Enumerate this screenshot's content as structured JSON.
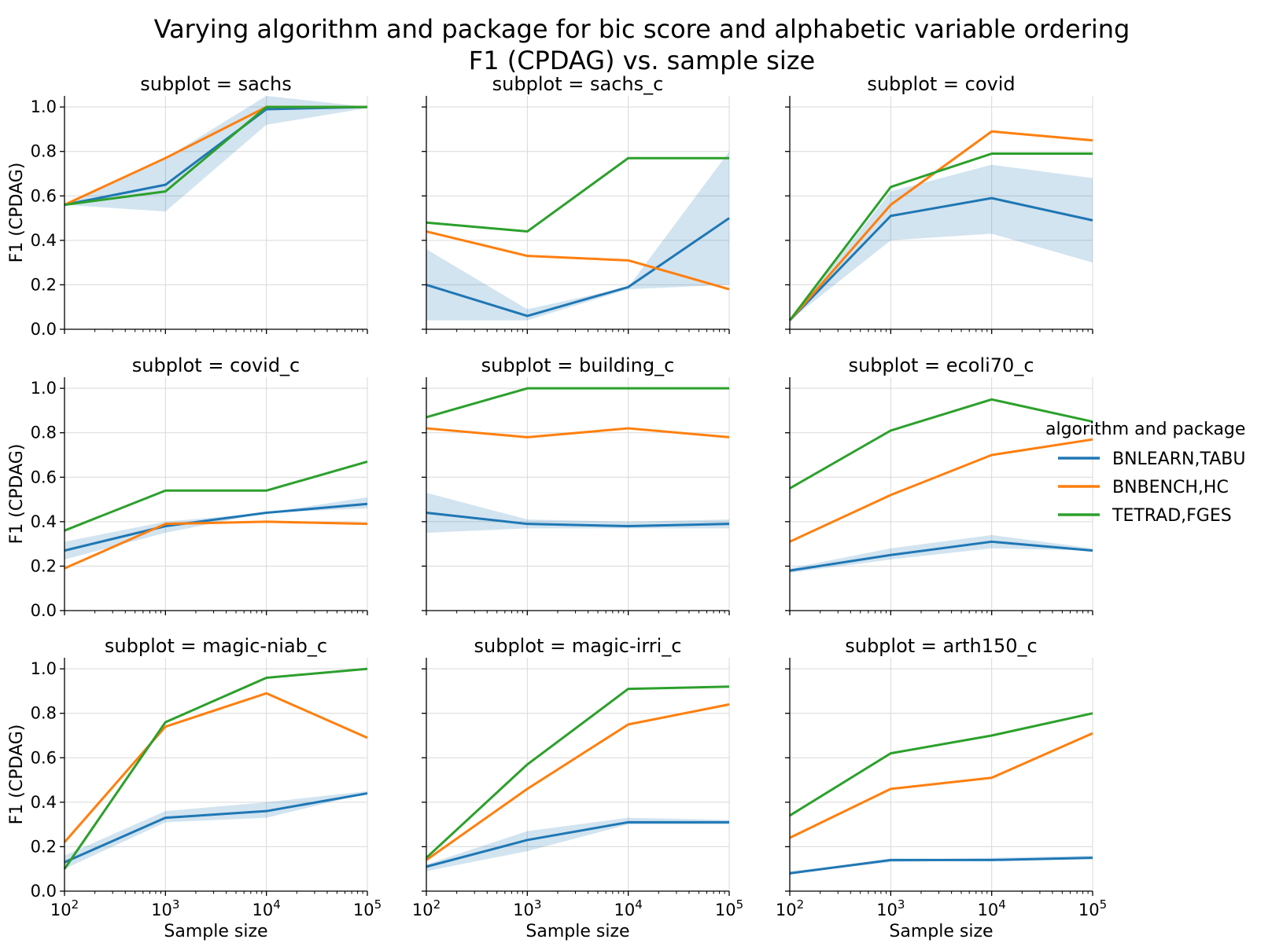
{
  "figure": {
    "title_line1": "Varying algorithm and package for bic score and alphabetic variable ordering",
    "title_line2": "F1 (CPDAG) vs. sample size"
  },
  "legend": {
    "title": "algorithm and package",
    "entries": [
      {
        "name": "BNLEARN,TABU",
        "color": "#1f77b4"
      },
      {
        "name": "BNBENCH,HC",
        "color": "#ff7f0e"
      },
      {
        "name": "TETRAD,FGES",
        "color": "#2ca02c"
      }
    ]
  },
  "axes": {
    "xlabel": "Sample size",
    "ylabel": "F1 (CPDAG)",
    "x_ticks": [
      {
        "base": "10",
        "exp": "2"
      },
      {
        "base": "10",
        "exp": "3"
      },
      {
        "base": "10",
        "exp": "4"
      },
      {
        "base": "10",
        "exp": "5"
      }
    ],
    "y_ticks": [
      "0.0",
      "0.2",
      "0.4",
      "0.6",
      "0.8",
      "1.0"
    ]
  },
  "chart_data": [
    {
      "type": "line",
      "title": "subplot = sachs",
      "x": [
        100,
        1000,
        10000,
        100000
      ],
      "ylim": [
        0,
        1.05
      ],
      "xscale": "log",
      "grid": true,
      "series": [
        {
          "name": "BNLEARN,TABU",
          "values": [
            0.56,
            0.65,
            0.99,
            1.0
          ],
          "band_low": [
            0.56,
            0.53,
            0.92,
            0.995
          ],
          "band_high": [
            0.56,
            0.77,
            1.05,
            1.0
          ]
        },
        {
          "name": "BNBENCH,HC",
          "values": [
            0.56,
            0.77,
            1.0,
            1.0
          ]
        },
        {
          "name": "TETRAD,FGES",
          "values": [
            0.56,
            0.62,
            1.0,
            1.0
          ]
        }
      ]
    },
    {
      "type": "line",
      "title": "subplot = sachs_c",
      "x": [
        100,
        1000,
        10000,
        100000
      ],
      "ylim": [
        0,
        1.05
      ],
      "xscale": "log",
      "grid": true,
      "series": [
        {
          "name": "BNLEARN,TABU",
          "values": [
            0.2,
            0.06,
            0.19,
            0.5
          ],
          "band_low": [
            0.04,
            0.04,
            0.18,
            0.2
          ],
          "band_high": [
            0.36,
            0.09,
            0.19,
            0.8
          ]
        },
        {
          "name": "BNBENCH,HC",
          "values": [
            0.44,
            0.33,
            0.31,
            0.18
          ]
        },
        {
          "name": "TETRAD,FGES",
          "values": [
            0.48,
            0.44,
            0.77,
            0.77
          ]
        }
      ]
    },
    {
      "type": "line",
      "title": "subplot = covid",
      "x": [
        100,
        1000,
        10000,
        100000
      ],
      "ylim": [
        0,
        1.05
      ],
      "xscale": "log",
      "grid": true,
      "series": [
        {
          "name": "BNLEARN,TABU",
          "values": [
            0.04,
            0.51,
            0.59,
            0.49
          ],
          "band_low": [
            0.04,
            0.4,
            0.43,
            0.3
          ],
          "band_high": [
            0.04,
            0.62,
            0.74,
            0.68
          ]
        },
        {
          "name": "BNBENCH,HC",
          "values": [
            0.04,
            0.56,
            0.89,
            0.85
          ]
        },
        {
          "name": "TETRAD,FGES",
          "values": [
            0.04,
            0.64,
            0.79,
            0.79
          ]
        }
      ]
    },
    {
      "type": "line",
      "title": "subplot = covid_c",
      "x": [
        100,
        1000,
        10000,
        100000
      ],
      "ylim": [
        0,
        1.05
      ],
      "xscale": "log",
      "grid": true,
      "series": [
        {
          "name": "BNLEARN,TABU",
          "values": [
            0.27,
            0.38,
            0.44,
            0.48
          ],
          "band_low": [
            0.23,
            0.35,
            0.44,
            0.46
          ],
          "band_high": [
            0.31,
            0.4,
            0.44,
            0.51
          ]
        },
        {
          "name": "BNBENCH,HC",
          "values": [
            0.19,
            0.39,
            0.4,
            0.39
          ]
        },
        {
          "name": "TETRAD,FGES",
          "values": [
            0.36,
            0.54,
            0.54,
            0.67
          ]
        }
      ]
    },
    {
      "type": "line",
      "title": "subplot = building_c",
      "x": [
        100,
        1000,
        10000,
        100000
      ],
      "ylim": [
        0,
        1.05
      ],
      "xscale": "log",
      "grid": true,
      "series": [
        {
          "name": "BNLEARN,TABU",
          "values": [
            0.44,
            0.39,
            0.38,
            0.39
          ],
          "band_low": [
            0.35,
            0.37,
            0.37,
            0.37
          ],
          "band_high": [
            0.53,
            0.41,
            0.4,
            0.41
          ]
        },
        {
          "name": "BNBENCH,HC",
          "values": [
            0.82,
            0.78,
            0.82,
            0.78
          ]
        },
        {
          "name": "TETRAD,FGES",
          "values": [
            0.87,
            1.0,
            1.0,
            1.0
          ]
        }
      ]
    },
    {
      "type": "line",
      "title": "subplot = ecoli70_c",
      "x": [
        100,
        1000,
        10000,
        100000
      ],
      "ylim": [
        0,
        1.05
      ],
      "xscale": "log",
      "grid": true,
      "series": [
        {
          "name": "BNLEARN,TABU",
          "values": [
            0.18,
            0.25,
            0.31,
            0.27
          ],
          "band_low": [
            0.17,
            0.23,
            0.28,
            0.27
          ],
          "band_high": [
            0.19,
            0.28,
            0.34,
            0.28
          ]
        },
        {
          "name": "BNBENCH,HC",
          "values": [
            0.31,
            0.52,
            0.7,
            0.77
          ]
        },
        {
          "name": "TETRAD,FGES",
          "values": [
            0.55,
            0.81,
            0.95,
            0.85
          ]
        }
      ]
    },
    {
      "type": "line",
      "title": "subplot = magic-niab_c",
      "x": [
        100,
        1000,
        10000,
        100000
      ],
      "ylim": [
        0,
        1.05
      ],
      "xscale": "log",
      "grid": true,
      "series": [
        {
          "name": "BNLEARN,TABU",
          "values": [
            0.13,
            0.33,
            0.36,
            0.44
          ],
          "band_low": [
            0.1,
            0.31,
            0.33,
            0.44
          ],
          "band_high": [
            0.16,
            0.36,
            0.4,
            0.45
          ]
        },
        {
          "name": "BNBENCH,HC",
          "values": [
            0.22,
            0.74,
            0.89,
            0.69
          ]
        },
        {
          "name": "TETRAD,FGES",
          "values": [
            0.1,
            0.76,
            0.96,
            1.0
          ]
        }
      ]
    },
    {
      "type": "line",
      "title": "subplot = magic-irri_c",
      "x": [
        100,
        1000,
        10000,
        100000
      ],
      "ylim": [
        0,
        1.05
      ],
      "xscale": "log",
      "grid": true,
      "series": [
        {
          "name": "BNLEARN,TABU",
          "values": [
            0.11,
            0.23,
            0.31,
            0.31
          ],
          "band_low": [
            0.09,
            0.18,
            0.3,
            0.3
          ],
          "band_high": [
            0.12,
            0.27,
            0.33,
            0.32
          ]
        },
        {
          "name": "BNBENCH,HC",
          "values": [
            0.14,
            0.46,
            0.75,
            0.84
          ]
        },
        {
          "name": "TETRAD,FGES",
          "values": [
            0.15,
            0.57,
            0.91,
            0.92
          ]
        }
      ]
    },
    {
      "type": "line",
      "title": "subplot = arth150_c",
      "x": [
        100,
        1000,
        10000,
        100000
      ],
      "ylim": [
        0,
        1.05
      ],
      "xscale": "log",
      "grid": true,
      "series": [
        {
          "name": "BNLEARN,TABU",
          "values": [
            0.08,
            0.14,
            0.14,
            0.15
          ],
          "band_low": [
            0.08,
            0.13,
            0.14,
            0.15
          ],
          "band_high": [
            0.09,
            0.14,
            0.15,
            0.16
          ]
        },
        {
          "name": "BNBENCH,HC",
          "values": [
            0.24,
            0.46,
            0.51,
            0.71
          ]
        },
        {
          "name": "TETRAD,FGES",
          "values": [
            0.34,
            0.62,
            0.7,
            0.8
          ]
        }
      ]
    }
  ]
}
